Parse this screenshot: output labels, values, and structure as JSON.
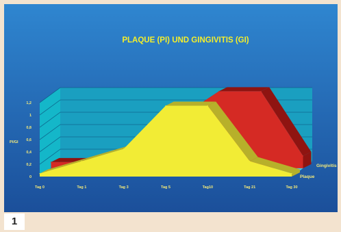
{
  "figure_number": "1",
  "colors": {
    "bg_top": "#2f86d0",
    "bg_bottom": "#1b4f9a",
    "wall_left": "#14b7c9",
    "wall_back": "#1a9fc0",
    "floor": "#4cd2e4",
    "plaque": "#f2ec35",
    "plaque_dark": "#b7b02a",
    "gingivitis": "#d52a24",
    "gingivitis_dark": "#8f1411",
    "title": "#f5ef2a",
    "label": "#f4ea7a"
  },
  "chart_data": {
    "type": "area",
    "title": "PLAQUE (PI) UND GINGIVITIS (GI)",
    "ylabel": "PI/GI",
    "xlabel": "",
    "categories": [
      "Tag 0",
      "Tag 1",
      "Tag 3",
      "Tag 5",
      "Tag10",
      "Tag 21",
      "Tag 30"
    ],
    "yticks": [
      "0",
      "0,2",
      "0,4",
      "0,6",
      "0,8",
      "1",
      "1,2"
    ],
    "ylim": [
      0,
      1.2
    ],
    "grid": true,
    "three_d": true,
    "series": [
      {
        "name": "Plaque",
        "values": [
          0.05,
          0.25,
          0.45,
          1.15,
          1.15,
          0.25,
          0.05
        ]
      },
      {
        "name": "Gingivitis",
        "values": [
          0.1,
          0.1,
          0.1,
          0.8,
          1.25,
          1.25,
          0.2
        ]
      }
    ]
  }
}
